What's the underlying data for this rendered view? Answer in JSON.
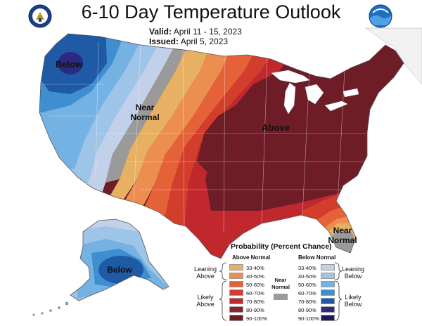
{
  "title": "6-10 Day Temperature Outlook",
  "valid_label": "Valid:",
  "valid_dates": "April 11 - 15, 2023",
  "issued_label": "Issued:",
  "issued_date": "April 5, 2023",
  "map_labels": {
    "below_nw": "Below",
    "near_normal_west_1": "Near",
    "near_normal_west_2": "Normal",
    "above": "Above",
    "near_normal_fl_1": "Near",
    "near_normal_fl_2": "Normal",
    "below_ak": "Below"
  },
  "legend": {
    "title": "Probability (Percent Chance)",
    "above_header": "Above Normal",
    "below_header": "Below Normal",
    "near_normal_1": "Near",
    "near_normal_2": "Normal",
    "leaning_above": [
      "Leaning",
      "Above"
    ],
    "likely_above": [
      "Likely",
      "Above"
    ],
    "leaning_below": [
      "Leaning",
      "Below"
    ],
    "likely_below": [
      "Likely",
      "Below"
    ],
    "above_bins": [
      {
        "label": "33-40%",
        "color": "#e8b062"
      },
      {
        "label": "40-50%",
        "color": "#eb8e50"
      },
      {
        "label": "50-60%",
        "color": "#e56238"
      },
      {
        "label": "60-70%",
        "color": "#d33d2c"
      },
      {
        "label": "70-80%",
        "color": "#c0282e"
      },
      {
        "label": "80-90%",
        "color": "#8e2330"
      },
      {
        "label": "90-100%",
        "color": "#6b1a22"
      }
    ],
    "below_bins": [
      {
        "label": "33-40%",
        "color": "#c2d0ea"
      },
      {
        "label": "40-50%",
        "color": "#9ec4e8"
      },
      {
        "label": "50-60%",
        "color": "#74b2e4"
      },
      {
        "label": "60-70%",
        "color": "#3f8fd0"
      },
      {
        "label": "70-80%",
        "color": "#1e5aa6"
      },
      {
        "label": "80-90%",
        "color": "#2c2a80"
      },
      {
        "label": "90-100%",
        "color": "#1b1a5a"
      }
    ],
    "near_color": "#9a9a9a"
  },
  "colors": {
    "near_normal": "#9a9a9a",
    "land_outline": "#ffffff",
    "lakes": "#ffffff"
  }
}
